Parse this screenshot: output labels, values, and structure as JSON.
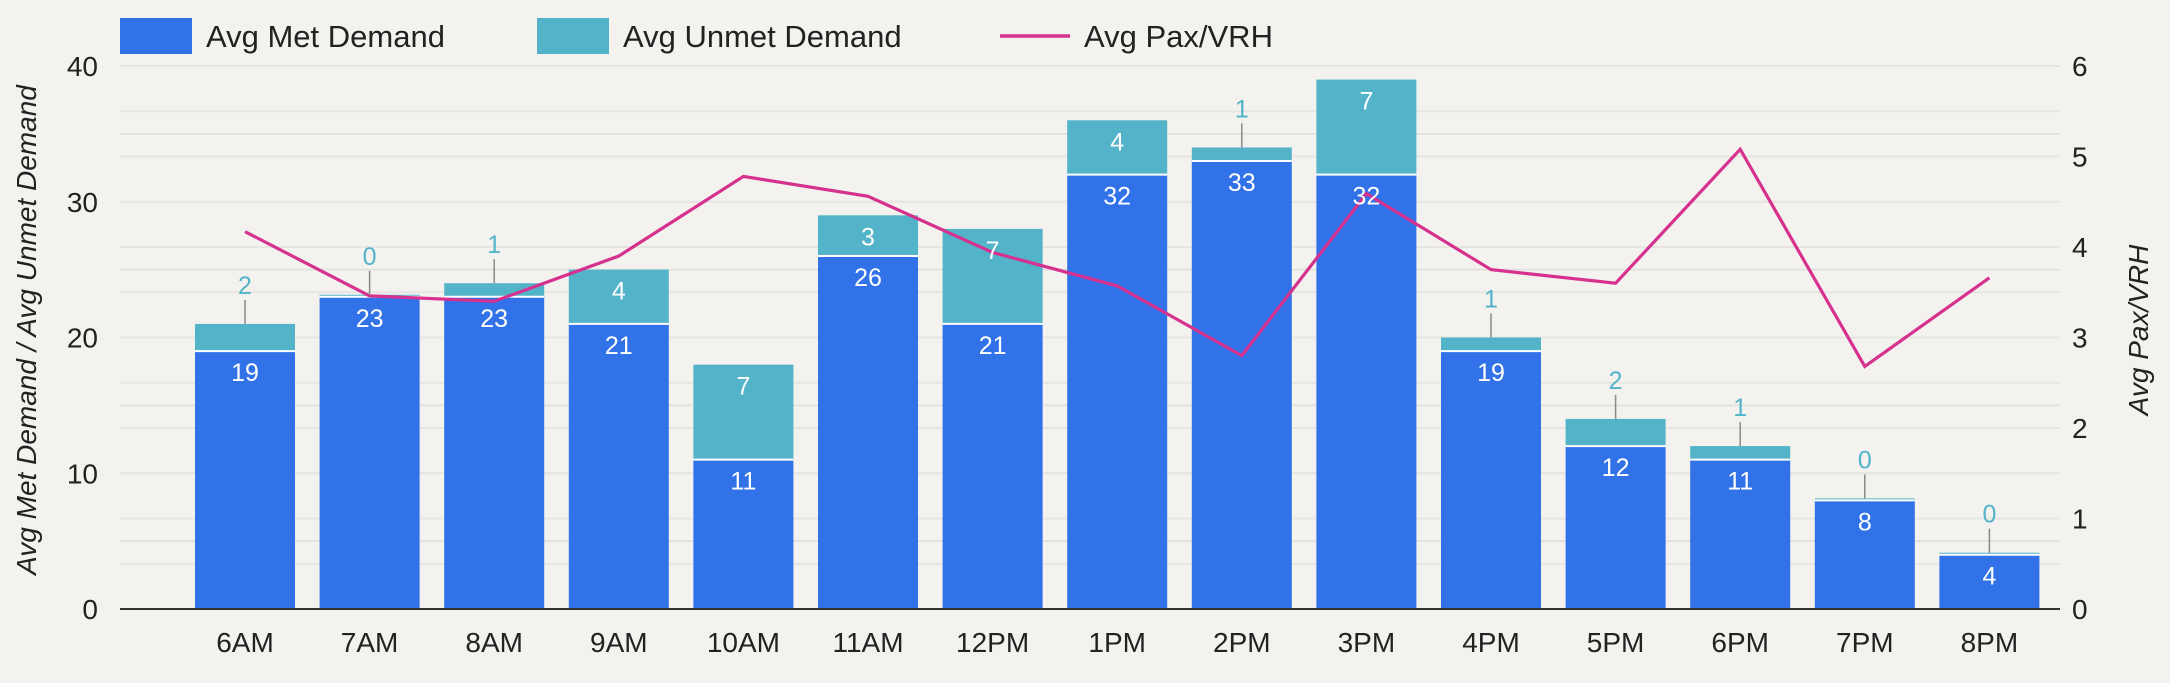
{
  "chart_data": {
    "type": "bar",
    "stacked": true,
    "categories": [
      "6AM",
      "7AM",
      "8AM",
      "9AM",
      "10AM",
      "11AM",
      "12PM",
      "1PM",
      "2PM",
      "3PM",
      "4PM",
      "5PM",
      "6PM",
      "7PM",
      "8PM"
    ],
    "series": [
      {
        "name": "Avg Met Demand",
        "type": "bar",
        "axis": "left",
        "color": "#3172e8",
        "values": [
          19,
          23,
          23,
          21,
          11,
          26,
          21,
          32,
          33,
          32,
          19,
          12,
          11,
          8,
          4
        ]
      },
      {
        "name": "Avg Unmet Demand",
        "type": "bar",
        "axis": "left",
        "color": "#52b3c9",
        "values": [
          2,
          0,
          1,
          4,
          7,
          3,
          7,
          4,
          1,
          7,
          1,
          2,
          1,
          0,
          0
        ]
      },
      {
        "name": "Avg Pax/VRH",
        "type": "line",
        "axis": "right",
        "color": "#d6318f",
        "values": [
          4.17,
          3.46,
          3.4,
          3.9,
          4.78,
          4.56,
          3.94,
          3.57,
          2.8,
          4.59,
          3.75,
          3.6,
          5.08,
          2.68,
          3.66
        ]
      }
    ],
    "ylabel": "Avg Met Demand / Avg Unmet Demand",
    "ylim": [
      0,
      40
    ],
    "yticks": [
      "0",
      "10",
      "20",
      "30",
      "40"
    ],
    "y2label": "Avg Pax/VRH",
    "y2lim": [
      0,
      6
    ],
    "y2ticks": [
      "0",
      "1",
      "2",
      "3",
      "4",
      "5",
      "6"
    ],
    "grid": true,
    "legend": "top-left",
    "data_labels": true
  }
}
